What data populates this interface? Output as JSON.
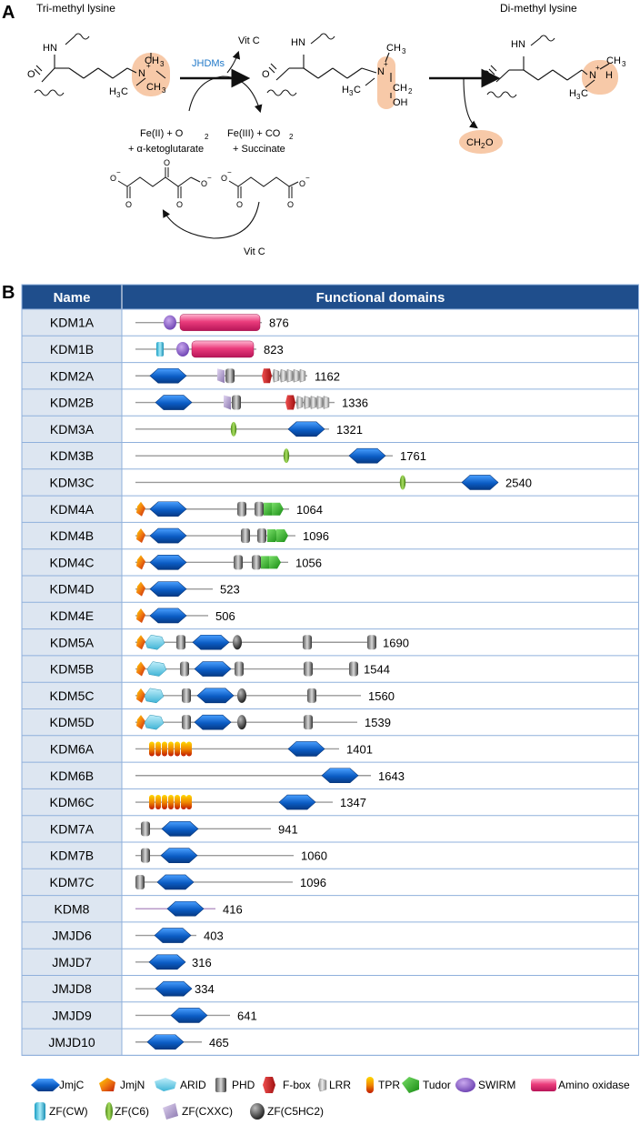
{
  "panel_a": {
    "letter": "A",
    "title_left": "Tri-methyl lysine",
    "title_right": "Di-methyl lysine",
    "enzyme": "JHDMs",
    "vitc_top": "Vit C",
    "vitc_bottom": "Vit C",
    "reactants_line1": "Fe(II) +  O",
    "reactants_sub": "2",
    "reactants_line2": "+ α-ketoglutarate",
    "products_line1": "Fe(III) + CO",
    "products_sub": "2",
    "products_line2": "+ Succinate",
    "formaldehyde": "CH",
    "formaldehyde_sub": "2",
    "formaldehyde_end": "O",
    "atom_hn": "HN",
    "atom_o": "O",
    "atom_n_plus": "N",
    "plus": "+",
    "ch3": "CH",
    "h3c": "H",
    "three": "3",
    "c_suffix": "C",
    "ch2": "CH",
    "two": "2",
    "oh": "OH",
    "h": "H",
    "o_minus": "O",
    "minus": "−"
  },
  "panel_b": {
    "letter": "B",
    "header_name": "Name",
    "header_domains": "Functional domains",
    "rows": [
      {
        "name": "KDM1A",
        "length": "876"
      },
      {
        "name": "KDM1B",
        "length": "823"
      },
      {
        "name": "KDM2A",
        "length": "1162"
      },
      {
        "name": "KDM2B",
        "length": "1336"
      },
      {
        "name": "KDM3A",
        "length": "1321"
      },
      {
        "name": "KDM3B",
        "length": "1761"
      },
      {
        "name": "KDM3C",
        "length": "2540"
      },
      {
        "name": "KDM4A",
        "length": "1064"
      },
      {
        "name": "KDM4B",
        "length": "1096"
      },
      {
        "name": "KDM4C",
        "length": "1056"
      },
      {
        "name": "KDM4D",
        "length": "523"
      },
      {
        "name": "KDM4E",
        "length": "506"
      },
      {
        "name": "KDM5A",
        "length": "1690"
      },
      {
        "name": "KDM5B",
        "length": "1544"
      },
      {
        "name": "KDM5C",
        "length": "1560"
      },
      {
        "name": "KDM5D",
        "length": "1539"
      },
      {
        "name": "KDM6A",
        "length": "1401"
      },
      {
        "name": "KDM6B",
        "length": "1643"
      },
      {
        "name": "KDM6C",
        "length": "1347"
      },
      {
        "name": "KDM7A",
        "length": "941"
      },
      {
        "name": "KDM7B",
        "length": "1060"
      },
      {
        "name": "KDM7C",
        "length": "1096"
      },
      {
        "name": "KDM8",
        "length": "416"
      },
      {
        "name": "JMJD6",
        "length": "403"
      },
      {
        "name": "JMJD7",
        "length": "316"
      },
      {
        "name": "JMJD8",
        "length": "334"
      },
      {
        "name": "JMJD9",
        "length": "641"
      },
      {
        "name": "JMJD10",
        "length": "465"
      }
    ],
    "legend": [
      {
        "label": "JmjC",
        "icon": "jmjc-icon"
      },
      {
        "label": "JmjN",
        "icon": "jmjn-icon"
      },
      {
        "label": "ARID",
        "icon": "arid-icon"
      },
      {
        "label": "PHD",
        "icon": "phd-icon"
      },
      {
        "label": "F-box",
        "icon": "fbox-icon"
      },
      {
        "label": "LRR",
        "icon": "lrr-icon"
      },
      {
        "label": "TPR",
        "icon": "tpr-icon"
      },
      {
        "label": "Tudor",
        "icon": "tudor-icon"
      },
      {
        "label": "SWIRM",
        "icon": "swirm-icon"
      },
      {
        "label": "Amino oxidase",
        "icon": "amino-oxidase-icon"
      },
      {
        "label": "ZF(CW)",
        "icon": "zf-cw-icon"
      },
      {
        "label": "ZF(C6)",
        "icon": "zf-c6-icon"
      },
      {
        "label": "ZF(CXXC)",
        "icon": "zf-cxxc-icon"
      },
      {
        "label": "ZF(C5HC2)",
        "icon": "zf-c5hc2-icon"
      }
    ]
  },
  "colors": {
    "header_bg": "#1f4e8c",
    "name_cell_bg": "#dde6f1",
    "grid_line": "#8fb0dc",
    "jmjc": "#0b5cc4",
    "highlight": "#f7c9a8",
    "enzyme_text": "#1f78c8"
  }
}
